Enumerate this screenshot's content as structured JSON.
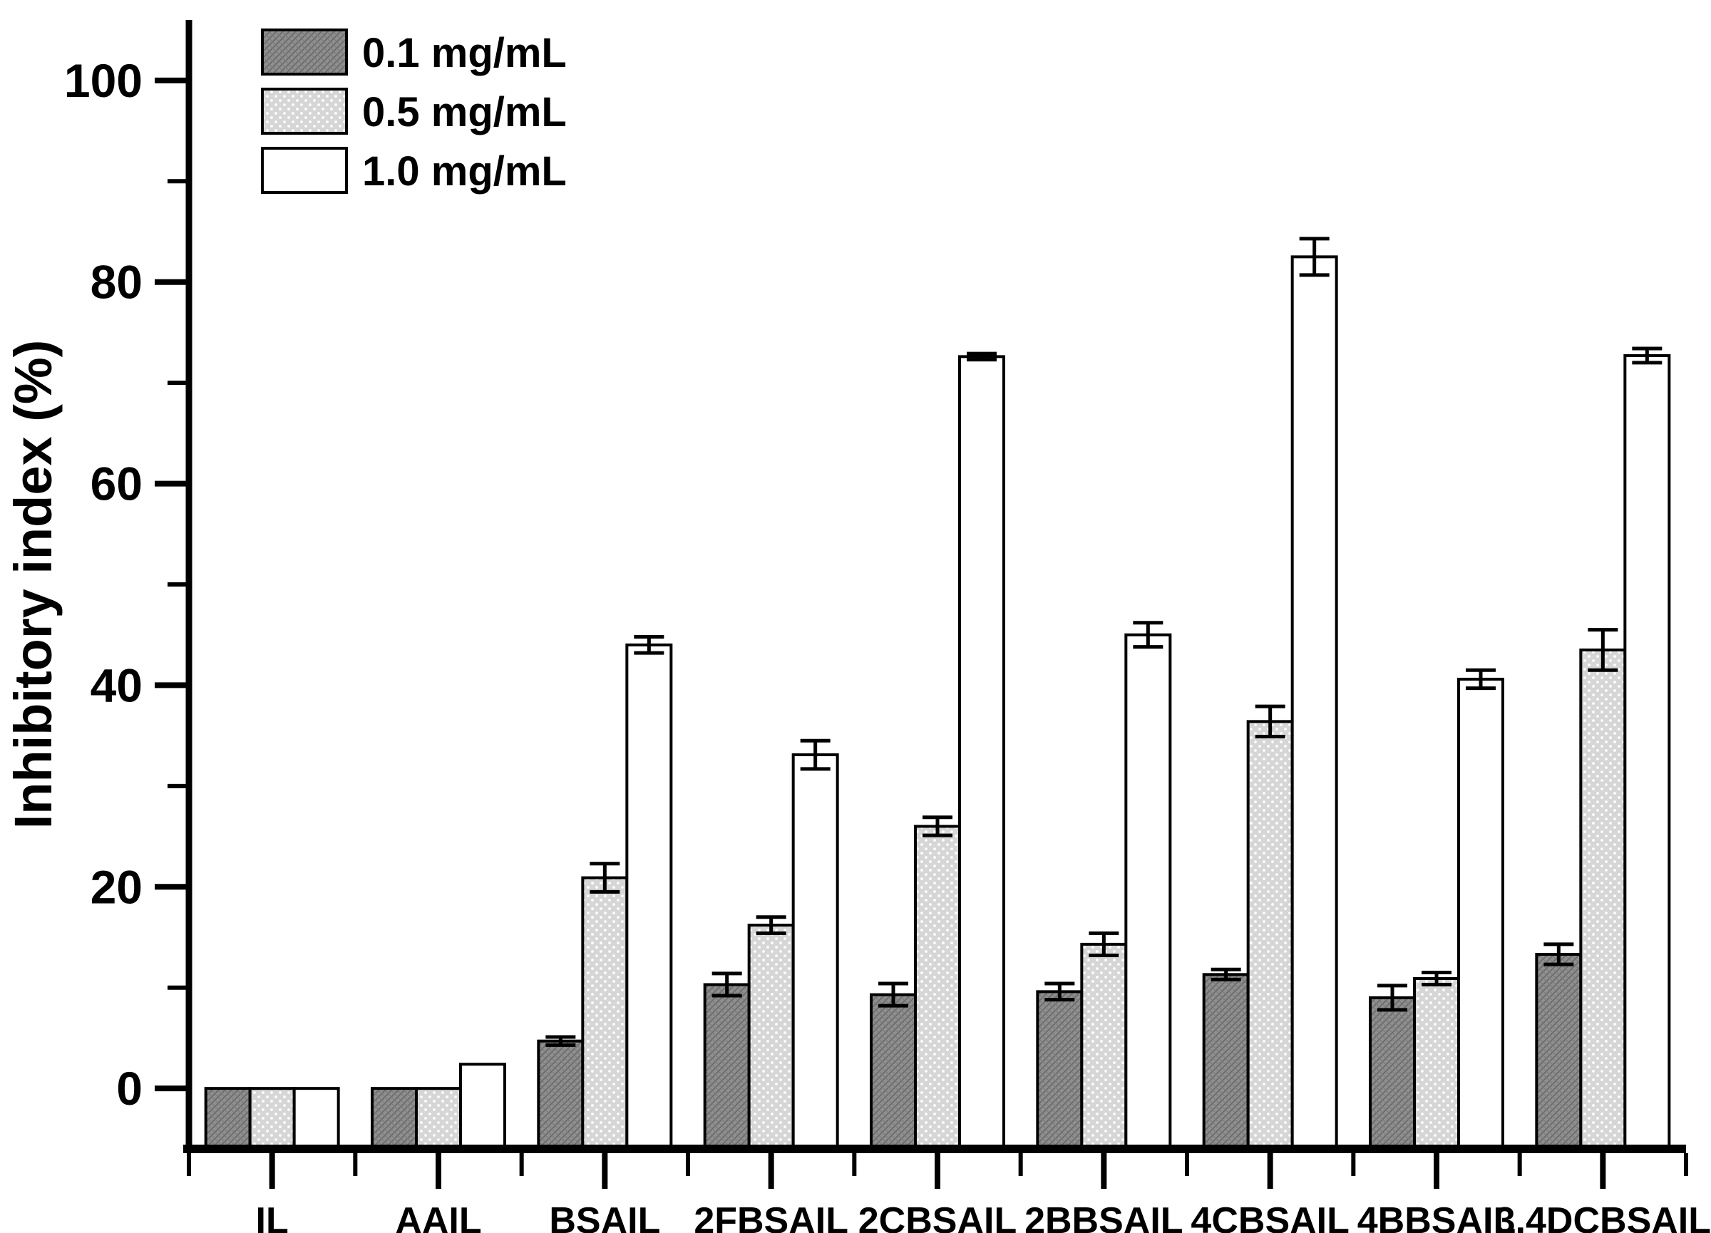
{
  "figure": {
    "type_label": "grouped-bar-figure"
  },
  "chart_data": {
    "type": "bar",
    "title": "",
    "xlabel": "",
    "ylabel": "Inhibitory index (%)",
    "categories": [
      "IL",
      "AAIL",
      "BSAIL",
      "2FBSAIL",
      "2CBSAIL",
      "2BBSAIL",
      "4CBSAIL",
      "4BBSAIL",
      "3,4DCBSAIL"
    ],
    "series": [
      {
        "name": "0.1 mg/mL",
        "fill": "#8f8f8f",
        "pattern": "crosshatch",
        "values": [
          0,
          0,
          4.7,
          10.3,
          9.3,
          9.6,
          11.3,
          9.0,
          13.3
        ],
        "errors": [
          0,
          0,
          0.4,
          1.1,
          1.1,
          0.8,
          0.5,
          1.2,
          1.0
        ]
      },
      {
        "name": "0.5 mg/mL",
        "fill": "#d6d6d6",
        "pattern": "dots",
        "values": [
          0,
          0,
          20.9,
          16.2,
          26.0,
          14.3,
          36.4,
          10.9,
          43.5
        ],
        "errors": [
          0,
          0,
          1.4,
          0.8,
          0.9,
          1.1,
          1.5,
          0.6,
          2.0
        ]
      },
      {
        "name": "1.0 mg/mL",
        "fill": "#ffffff",
        "pattern": "none",
        "values": [
          0,
          2.4,
          44.0,
          33.1,
          72.6,
          45.0,
          82.5,
          40.6,
          72.7
        ],
        "errors": [
          0,
          0,
          0.8,
          1.4,
          0.3,
          1.2,
          1.8,
          0.9,
          0.7
        ]
      }
    ],
    "yticks_major": [
      0,
      20,
      40,
      60,
      80,
      100
    ],
    "yticks_minor": [
      10,
      30,
      50,
      70,
      90
    ],
    "ylim": [
      -6,
      106
    ],
    "grid": false,
    "legend_position": "top-left-inside",
    "bar_edge_color": "#000000",
    "error_bar_color": "#000000"
  }
}
